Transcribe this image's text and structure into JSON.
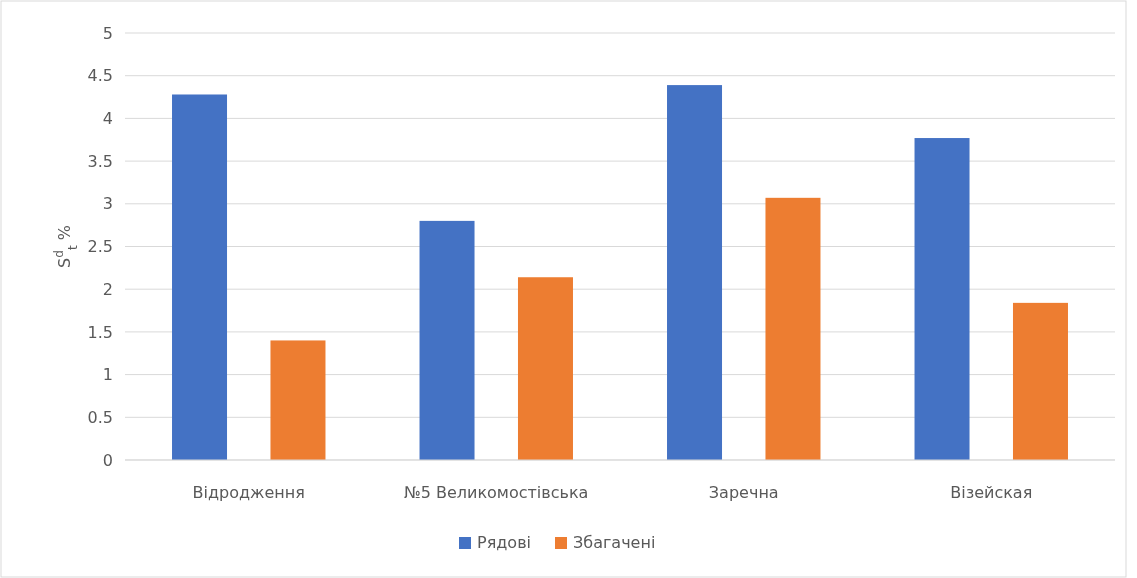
{
  "chart_data": {
    "type": "bar",
    "ylabel": "S$^{d}$$_{t}$ %",
    "categories": [
      "Відродження",
      "№5 Великомостівська",
      "Заречна",
      "Візейская"
    ],
    "series": [
      {
        "name": "Рядові",
        "color": "#4472c4",
        "values": [
          4.28,
          2.8,
          4.39,
          3.77
        ]
      },
      {
        "name": "Збагачені",
        "color": "#ed7d31",
        "values": [
          1.4,
          2.14,
          3.07,
          1.84
        ]
      }
    ],
    "ylim": [
      0,
      5
    ],
    "yticks": [
      0,
      0.5,
      1,
      1.5,
      2,
      2.5,
      3,
      3.5,
      4,
      4.5,
      5
    ],
    "grid": "y",
    "legend": "bottom"
  }
}
